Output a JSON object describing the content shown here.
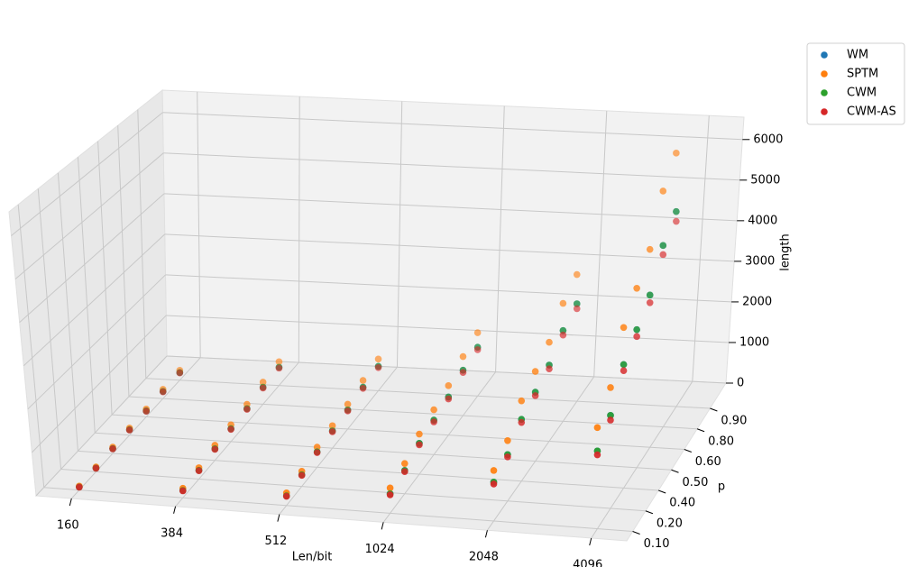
{
  "chart_data": {
    "type": "scatter3d",
    "xlabel": "Len/bit",
    "ylabel": "p",
    "zlabel": "length",
    "categories": [
      "160",
      "384",
      "512",
      "1024",
      "2048",
      "4096"
    ],
    "p_categories": [
      "0.10",
      "0.20",
      "0.40",
      "0.50",
      "0.60",
      "0.80",
      "0.90"
    ],
    "zlim": [
      0,
      6550
    ],
    "zticks": [
      0,
      1000,
      2000,
      3000,
      4000,
      5000,
      6000
    ],
    "grid": true,
    "legend": "upper right",
    "series": [
      {
        "name": "WM",
        "color": "#1f77b4",
        "values": [
          [
            70,
            85,
            114,
            128,
            142,
            171,
            186
          ],
          [
            169,
            204,
            273,
            307,
            342,
            411,
            445
          ],
          [
            225,
            271,
            364,
            410,
            456,
            548,
            594
          ],
          [
            451,
            543,
            727,
            819,
            911,
            1096,
            1188
          ],
          [
            901,
            1085,
            1454,
            1638,
            1823,
            2191,
            2376
          ],
          [
            1802,
            2171,
            2908,
            3277,
            3645,
            4383,
            4751
          ]
        ]
      },
      {
        "name": "SPTM",
        "color": "#ff7f0e",
        "values": [
          [
            91,
            111,
            148,
            166,
            185,
            222,
            242
          ],
          [
            220,
            265,
            355,
            399,
            445,
            534,
            579
          ],
          [
            293,
            352,
            473,
            533,
            593,
            712,
            772
          ],
          [
            586,
            706,
            945,
            1065,
            1184,
            1425,
            1544
          ],
          [
            1171,
            1411,
            1890,
            2129,
            2370,
            2848,
            3089
          ],
          [
            2343,
            2822,
            3780,
            4260,
            4739,
            5698,
            6176
          ]
        ]
      },
      {
        "name": "CWM",
        "color": "#2ca02c",
        "values": [
          [
            70,
            85,
            114,
            128,
            142,
            171,
            186
          ],
          [
            169,
            204,
            273,
            307,
            342,
            411,
            445
          ],
          [
            225,
            271,
            364,
            410,
            456,
            548,
            594
          ],
          [
            451,
            543,
            727,
            819,
            911,
            1096,
            1188
          ],
          [
            901,
            1085,
            1454,
            1638,
            1823,
            2191,
            2376
          ],
          [
            1802,
            2171,
            2908,
            3277,
            3645,
            4383,
            4751
          ]
        ]
      },
      {
        "name": "CWM-AS",
        "color": "#d62728",
        "values": [
          [
            67,
            81,
            108,
            122,
            135,
            162,
            177
          ],
          [
            161,
            194,
            259,
            292,
            325,
            390,
            423
          ],
          [
            214,
            257,
            346,
            390,
            433,
            521,
            564
          ],
          [
            428,
            516,
            691,
            778,
            865,
            1041,
            1129
          ],
          [
            856,
            1031,
            1381,
            1556,
            1732,
            2081,
            2257
          ],
          [
            1712,
            2062,
            2763,
            3113,
            3463,
            4164,
            4513
          ]
        ]
      }
    ]
  }
}
